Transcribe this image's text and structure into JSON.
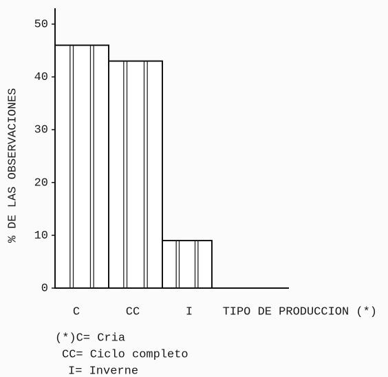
{
  "chart_data": {
    "type": "bar",
    "categories": [
      "C",
      "CC",
      "I"
    ],
    "values": [
      46,
      43,
      9
    ],
    "color": "#ffffff",
    "ylim": [
      0,
      53
    ],
    "yticks": [
      0,
      10,
      20,
      30,
      40,
      50
    ],
    "xlabel": "TIPO DE PRODUCCION (*)",
    "ylabel": "% DE LAS OBSERVACIONES",
    "notes": [
      "(*)C= Cria",
      "CC= Ciclo completo",
      "I= Inverne"
    ],
    "grid": false
  }
}
